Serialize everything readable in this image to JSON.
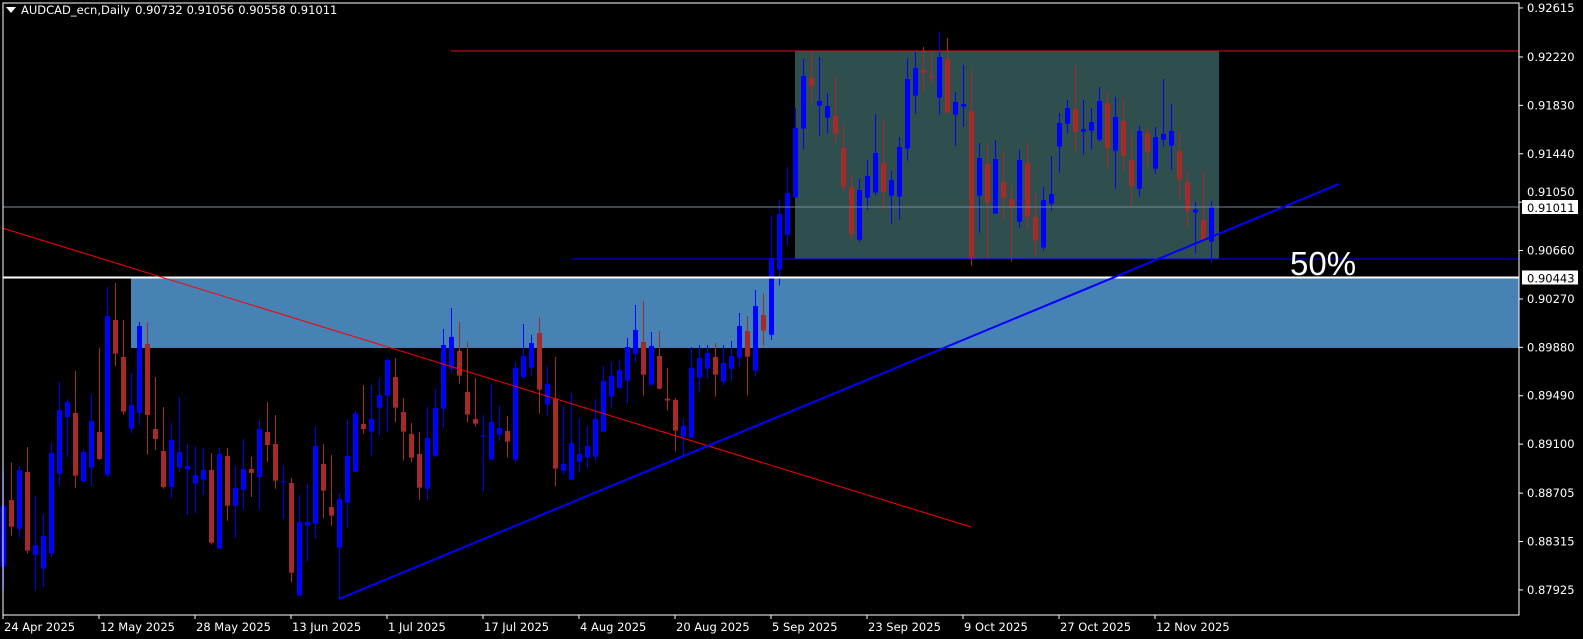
{
  "header": {
    "symbol_timeframe": "AUDCAD_ecn,Daily",
    "open": "0.90732",
    "high": "0.91056",
    "low": "0.90558",
    "close": "0.91011",
    "menu_icon": "triangle-down-icon"
  },
  "annotation_text": "50%",
  "colors": {
    "background": "#000000",
    "axes": "#FFFFFF",
    "bull_candle": "#0000FF",
    "bear_candle": "#A52A2A",
    "support_zone": "#4682B4",
    "range_box": "#2F4F4F",
    "resistance_line": "#DC1414",
    "range_low_line": "#0000FF",
    "downtrend_line": "#FF0000",
    "uptrend_line": "#0000FF",
    "bid_line": "#778899",
    "level_line": "#FFFFFF"
  },
  "chart_data": {
    "type": "candlestick",
    "title": "AUDCAD_ecn,Daily",
    "ylim": [
      0.87723,
      0.92655
    ],
    "y_ticks": [
      "0.92615",
      "0.92220",
      "0.91830",
      "0.91440",
      "0.91050",
      "0.90660",
      "0.90270",
      "0.89880",
      "0.89490",
      "0.89100",
      "0.88705",
      "0.88315",
      "0.87925"
    ],
    "x_ticks": [
      "24 Apr 2025",
      "12 May 2025",
      "28 May 2025",
      "13 Jun 2025",
      "1 Jul 2025",
      "17 Jul 2025",
      "4 Aug 2025",
      "20 Aug 2025",
      "5 Sep 2025",
      "23 Sep 2025",
      "9 Oct 2025",
      "27 Oct 2025",
      "12 Nov 2025"
    ],
    "grid": false,
    "price_labels": {
      "bid": "0.91011",
      "level": "0.90443"
    },
    "ohlc_columns": [
      "open",
      "high",
      "low",
      "close"
    ],
    "candles": [
      [
        0.88113,
        0.88892,
        0.87938,
        0.88604
      ],
      [
        0.8865,
        0.88951,
        0.88363,
        0.88435
      ],
      [
        0.88419,
        0.88924,
        0.88346,
        0.88892
      ],
      [
        0.88876,
        0.89077,
        0.8822,
        0.88242
      ],
      [
        0.88207,
        0.88682,
        0.87917,
        0.88285
      ],
      [
        0.88097,
        0.88537,
        0.87949,
        0.8836
      ],
      [
        0.88218,
        0.89109,
        0.88188,
        0.89029
      ],
      [
        0.88862,
        0.89601,
        0.88766,
        0.89375
      ],
      [
        0.89319,
        0.89464,
        0.88991,
        0.8944
      ],
      [
        0.89351,
        0.8969,
        0.88749,
        0.88846
      ],
      [
        0.88803,
        0.89053,
        0.88782,
        0.89037
      ],
      [
        0.88911,
        0.89504,
        0.88766,
        0.89287
      ],
      [
        0.89198,
        0.89875,
        0.88972,
        0.8898
      ],
      [
        0.88851,
        0.90367,
        0.88835,
        0.90133
      ],
      [
        0.90101,
        0.90399,
        0.8973,
        0.89829
      ],
      [
        0.89802,
        0.90101,
        0.89338,
        0.89362
      ],
      [
        0.89225,
        0.89673,
        0.8919,
        0.89416
      ],
      [
        0.89351,
        0.90084,
        0.89254,
        0.90052
      ],
      [
        0.89907,
        0.90084,
        0.89013,
        0.89335
      ],
      [
        0.89222,
        0.89641,
        0.89053,
        0.89142
      ],
      [
        0.89045,
        0.89399,
        0.88739,
        0.88755
      ],
      [
        0.88755,
        0.89271,
        0.88666,
        0.89134
      ],
      [
        0.88911,
        0.8948,
        0.88878,
        0.89037
      ],
      [
        0.889,
        0.89101,
        0.88529,
        0.88924
      ],
      [
        0.88782,
        0.89085,
        0.88545,
        0.88851
      ],
      [
        0.88814,
        0.89069,
        0.88693,
        0.88892
      ],
      [
        0.88892,
        0.89029,
        0.8829,
        0.88306
      ],
      [
        0.88258,
        0.89069,
        0.88258,
        0.89021
      ],
      [
        0.89005,
        0.89069,
        0.88483,
        0.88604
      ],
      [
        0.88604,
        0.88924,
        0.88346,
        0.88747
      ],
      [
        0.88733,
        0.89142,
        0.88572,
        0.889
      ],
      [
        0.889,
        0.88997,
        0.88674,
        0.88868
      ],
      [
        0.88835,
        0.89295,
        0.88572,
        0.89222
      ],
      [
        0.89198,
        0.8944,
        0.88956,
        0.89093
      ],
      [
        0.89101,
        0.89335,
        0.88739,
        0.88806
      ],
      [
        0.888,
        0.88932,
        0.885,
        0.88801
      ],
      [
        0.88787,
        0.88827,
        0.87984,
        0.88064
      ],
      [
        0.87879,
        0.8869,
        0.87879,
        0.88473
      ],
      [
        0.88443,
        0.88779,
        0.88153,
        0.88473
      ],
      [
        0.88459,
        0.89238,
        0.88338,
        0.89085
      ],
      [
        0.8894,
        0.89101,
        0.885,
        0.88725
      ],
      [
        0.88594,
        0.89013,
        0.88443,
        0.88524
      ],
      [
        0.88266,
        0.88706,
        0.87852,
        0.88658
      ],
      [
        0.88628,
        0.89295,
        0.88427,
        0.89005
      ],
      [
        0.88878,
        0.89367,
        0.8887,
        0.89348
      ],
      [
        0.89262,
        0.89577,
        0.89185,
        0.89222
      ],
      [
        0.89201,
        0.89577,
        0.89007,
        0.89303
      ],
      [
        0.89394,
        0.89633,
        0.89168,
        0.89496
      ],
      [
        0.89491,
        0.89794,
        0.89201,
        0.89778
      ],
      [
        0.89641,
        0.89794,
        0.89273,
        0.89394
      ],
      [
        0.89359,
        0.89472,
        0.88967,
        0.89201
      ],
      [
        0.89182,
        0.89271,
        0.88951,
        0.88991
      ],
      [
        0.89021,
        0.89198,
        0.8865,
        0.88749
      ],
      [
        0.88741,
        0.89402,
        0.8865,
        0.8915
      ],
      [
        0.89007,
        0.89545,
        0.88991,
        0.89392
      ],
      [
        0.89386,
        0.90028,
        0.89233,
        0.89899
      ],
      [
        0.89708,
        0.90197,
        0.89676,
        0.89964
      ],
      [
        0.89851,
        0.90085,
        0.89588,
        0.89652
      ],
      [
        0.8952,
        0.89923,
        0.89273,
        0.89338
      ],
      [
        0.89303,
        0.89633,
        0.89241,
        0.89265
      ],
      [
        0.8917,
        0.89335,
        0.88717,
        0.89171
      ],
      [
        0.88975,
        0.89585,
        0.88975,
        0.89279
      ],
      [
        0.89177,
        0.89408,
        0.8912,
        0.8923
      ],
      [
        0.89206,
        0.89327,
        0.88991,
        0.8912
      ],
      [
        0.88975,
        0.89762,
        0.88959,
        0.89714
      ],
      [
        0.89641,
        0.90068,
        0.89625,
        0.89811
      ],
      [
        0.89717,
        0.8998,
        0.89652,
        0.89915
      ],
      [
        0.89996,
        0.90125,
        0.89346,
        0.89539
      ],
      [
        0.89418,
        0.8973,
        0.8933,
        0.89585
      ],
      [
        0.89469,
        0.89803,
        0.88758,
        0.88903
      ],
      [
        0.88886,
        0.89408,
        0.88854,
        0.8894
      ],
      [
        0.88814,
        0.89512,
        0.88806,
        0.89109
      ],
      [
        0.88959,
        0.89311,
        0.8887,
        0.89021
      ],
      [
        0.88994,
        0.89246,
        0.88903,
        0.89085
      ],
      [
        0.88999,
        0.89464,
        0.88967,
        0.89303
      ],
      [
        0.89201,
        0.8973,
        0.89201,
        0.89609
      ],
      [
        0.89483,
        0.89762,
        0.89394,
        0.89649
      ],
      [
        0.89555,
        0.89778,
        0.89547,
        0.89698
      ],
      [
        0.89612,
        0.89956,
        0.89426,
        0.89883
      ],
      [
        0.89829,
        0.90222,
        0.89757,
        0.9002
      ],
      [
        0.89923,
        0.90254,
        0.89491,
        0.8966
      ],
      [
        0.8958,
        0.90004,
        0.89571,
        0.89891
      ],
      [
        0.89811,
        0.90012,
        0.89539,
        0.89547
      ],
      [
        0.89467,
        0.89714,
        0.8937,
        0.89451
      ],
      [
        0.89456,
        0.89472,
        0.8904,
        0.89209
      ],
      [
        0.8916,
        0.89303,
        0.89007,
        0.89249
      ],
      [
        0.89152,
        0.89883,
        0.89152,
        0.89714
      ],
      [
        0.89636,
        0.89899,
        0.89515,
        0.89794
      ],
      [
        0.89708,
        0.89899,
        0.89628,
        0.89835
      ],
      [
        0.89803,
        0.89915,
        0.89483,
        0.8966
      ],
      [
        0.89604,
        0.89899,
        0.89571,
        0.89754
      ],
      [
        0.89708,
        0.89931,
        0.89612,
        0.89811
      ],
      [
        0.89797,
        0.90157,
        0.89725,
        0.90052
      ],
      [
        0.90012,
        0.90133,
        0.89491,
        0.89805
      ],
      [
        0.89692,
        0.90342,
        0.89644,
        0.90213
      ],
      [
        0.90141,
        0.90318,
        0.89894,
        0.90015
      ],
      [
        0.89982,
        0.90939,
        0.8994,
        0.906
      ],
      [
        0.90506,
        0.91068,
        0.9038,
        0.90955
      ],
      [
        0.90786,
        0.91334,
        0.907,
        0.91124
      ],
      [
        0.91087,
        0.91809,
        0.91087,
        0.91648
      ],
      [
        0.91643,
        0.92204,
        0.91473,
        0.92067
      ],
      [
        0.92051,
        0.9226,
        0.91852,
        0.91989
      ],
      [
        0.91828,
        0.9222,
        0.91586,
        0.91866
      ],
      [
        0.91731,
        0.9193,
        0.91602,
        0.91825
      ],
      [
        0.91745,
        0.92059,
        0.9153,
        0.91602
      ],
      [
        0.91487,
        0.91664,
        0.91135,
        0.91175
      ],
      [
        0.91172,
        0.91269,
        0.9074,
        0.90796
      ],
      [
        0.90748,
        0.91237,
        0.90732,
        0.91148
      ],
      [
        0.91087,
        0.9139,
        0.9099,
        0.91261
      ],
      [
        0.91127,
        0.91761,
        0.91103,
        0.91447
      ],
      [
        0.91366,
        0.91721,
        0.9099,
        0.91135
      ],
      [
        0.91103,
        0.91301,
        0.90877,
        0.91229
      ],
      [
        0.91095,
        0.91575,
        0.90909,
        0.91495
      ],
      [
        0.91481,
        0.92212,
        0.91385,
        0.92043
      ],
      [
        0.91909,
        0.9226,
        0.91763,
        0.92132
      ],
      [
        0.92115,
        0.92301,
        0.91933,
        0.92091
      ],
      [
        0.92067,
        0.9226,
        0.92005,
        0.92054
      ],
      [
        0.91892,
        0.92422,
        0.91755,
        0.9222
      ],
      [
        0.92204,
        0.92373,
        0.91769,
        0.91772
      ],
      [
        0.91755,
        0.91938,
        0.91506,
        0.91858
      ],
      [
        0.9182,
        0.92156,
        0.91659,
        0.91841
      ],
      [
        0.91785,
        0.92115,
        0.90539,
        0.90592
      ],
      [
        0.91103,
        0.91527,
        0.90804,
        0.91406
      ],
      [
        0.91358,
        0.91511,
        0.90592,
        0.91046
      ],
      [
        0.90958,
        0.91551,
        0.90958,
        0.91398
      ],
      [
        0.91213,
        0.91463,
        0.90901,
        0.91087
      ],
      [
        0.91076,
        0.91189,
        0.90571,
        0.91011
      ],
      [
        0.90893,
        0.91471,
        0.90845,
        0.9139
      ],
      [
        0.91366,
        0.91527,
        0.90829,
        0.90933
      ],
      [
        0.90931,
        0.91116,
        0.90619,
        0.9074
      ],
      [
        0.90684,
        0.91172,
        0.90659,
        0.91068
      ],
      [
        0.91038,
        0.91422,
        0.90982,
        0.91116
      ],
      [
        0.91498,
        0.91769,
        0.91288,
        0.91688
      ],
      [
        0.91683,
        0.91874,
        0.91602,
        0.91809
      ],
      [
        0.91801,
        0.92148,
        0.91457,
        0.91618
      ],
      [
        0.91618,
        0.91874,
        0.91433,
        0.9164
      ],
      [
        0.91626,
        0.91809,
        0.91473,
        0.91696
      ],
      [
        0.91554,
        0.91978,
        0.91538,
        0.91866
      ],
      [
        0.91849,
        0.91938,
        0.9132,
        0.91489
      ],
      [
        0.91465,
        0.91898,
        0.91159,
        0.91737
      ],
      [
        0.91704,
        0.91882,
        0.91296,
        0.91425
      ],
      [
        0.9139,
        0.916,
        0.91022,
        0.91183
      ],
      [
        0.91159,
        0.91664,
        0.91095,
        0.91624
      ],
      [
        0.91608,
        0.91648,
        0.91336,
        0.91457
      ],
      [
        0.9132,
        0.91656,
        0.9128,
        0.91575
      ],
      [
        0.91554,
        0.92043,
        0.91498,
        0.916
      ],
      [
        0.91506,
        0.91841,
        0.91312,
        0.91624
      ],
      [
        0.91463,
        0.91624,
        0.91078,
        0.91232
      ],
      [
        0.91213,
        0.91301,
        0.90853,
        0.90982
      ],
      [
        0.90966,
        0.91052,
        0.90635,
        0.9099
      ],
      [
        0.90907,
        0.91301,
        0.90732,
        0.9074
      ],
      [
        0.90732,
        0.91056,
        0.90558,
        0.91011
      ]
    ],
    "objects": {
      "support_zone": {
        "from_date": "16 May 2025",
        "price_top": 0.90443,
        "price_bottom": 0.89875,
        "extends_right": true
      },
      "range_box": {
        "from_date": "10 Sep 2025",
        "to_date": "24 Nov 2025",
        "price_top": 0.92268,
        "price_bottom": 0.90592
      },
      "resistance_line": {
        "from_date": "11 Jul 2025",
        "price": 0.92268
      },
      "range_low_line": {
        "from_date": "1 Aug 2025",
        "price": 0.90592
      },
      "level_line": {
        "price": 0.90443
      },
      "bid_line": {
        "price": 0.91011
      },
      "downtrend_line": {
        "start": {
          "date": "24 Apr 2025",
          "price": 0.9084
        },
        "end": {
          "date": "10 Oct 2025",
          "price": 0.88432
        },
        "extends_left": true
      },
      "uptrend_line": {
        "start": {
          "date": "23 Jun 2025",
          "price": 0.87852
        },
        "end": {
          "date": "15 Dec 2025",
          "price": 0.91197
        }
      }
    }
  }
}
